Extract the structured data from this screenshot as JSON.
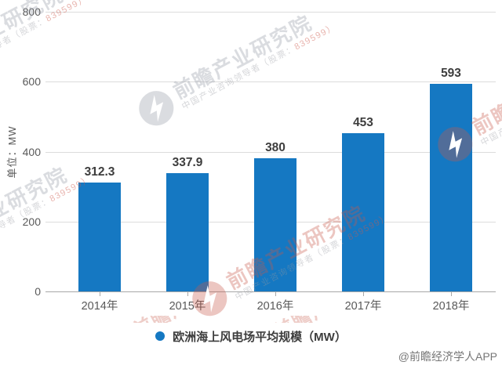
{
  "chart_data": {
    "type": "bar",
    "categories": [
      "2014年",
      "2015年",
      "2016年",
      "2017年",
      "2018年"
    ],
    "values": [
      312.3,
      337.9,
      380,
      453,
      593
    ],
    "ylabel": "单位：MW",
    "xlabel": "",
    "ylim": [
      0,
      800
    ],
    "yticks": [
      0,
      200,
      400,
      600,
      800
    ],
    "grid": "horizontal",
    "bar_color": "#1578C2",
    "legend": {
      "label": "欧洲海上风电场平均规模（MW）",
      "position": "bottom",
      "marker": "circle",
      "marker_color": "#1578C2"
    }
  },
  "source": "@前瞻经济学人APP",
  "watermark": {
    "title": "前瞻产业研究院",
    "subtitle_prefix": "中国产业咨询领导者（股票：",
    "subtitle_stock": "839599）"
  }
}
